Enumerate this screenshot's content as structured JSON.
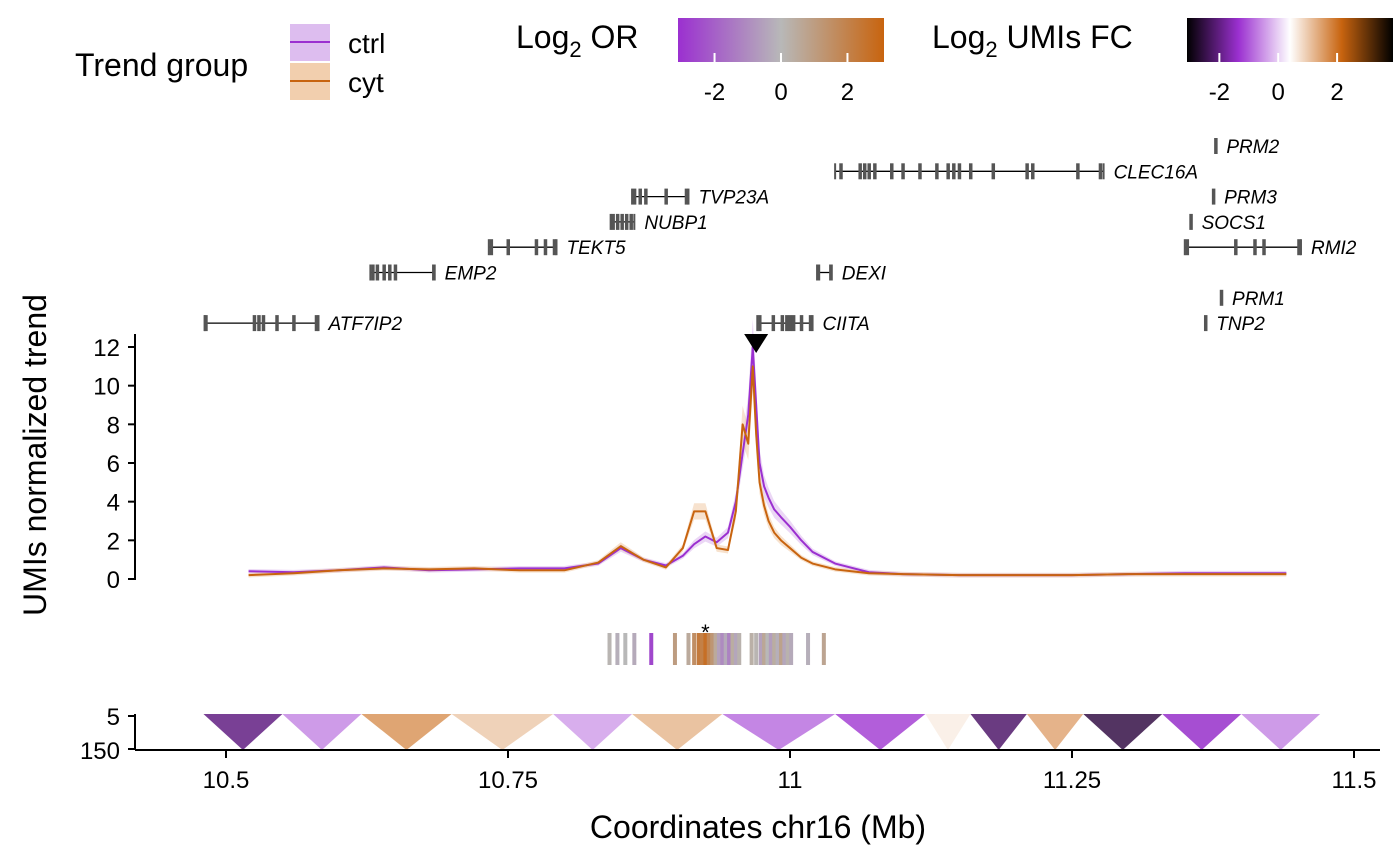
{
  "chart_data": {
    "type": "line",
    "xlabel": "Coordinates chr16 (Mb)",
    "ylabel": "UMIs normalized trend",
    "xlim": [
      10.43,
      11.53
    ],
    "ylim": [
      0,
      12.5
    ],
    "x_ticks": [
      10.5,
      10.75,
      11,
      11.25,
      11.5
    ],
    "x_tick_labels": [
      "10.5",
      "10.75",
      "11",
      "11.25",
      "11.5"
    ],
    "y_ticks": [
      0,
      2,
      4,
      6,
      8,
      10,
      12
    ],
    "y_tick_labels": [
      "0",
      "2",
      "4",
      "6",
      "8",
      "10",
      "12"
    ],
    "viewpoint": 10.97,
    "legend": {
      "title": "Trend group",
      "position": "top-left",
      "entries": [
        {
          "label": "ctrl",
          "line_color": "#9B30D0",
          "fill_color": "#DDBDEF"
        },
        {
          "label": "cyt",
          "line_color": "#C8640F",
          "fill_color": "#F2CFAE"
        }
      ]
    },
    "colorbars": [
      {
        "title_base": "Log",
        "title_sub": "2",
        "title_rest": " OR",
        "ticks": [
          -2,
          0,
          2
        ],
        "tick_labels": [
          "-2",
          "0",
          "2"
        ],
        "colors": [
          "#9B30D0",
          "#B8B8B8",
          "#C8640F"
        ]
      },
      {
        "title_base": "Log",
        "title_sub": "2",
        "title_rest": " UMIs FC",
        "ticks": [
          -2,
          0,
          2
        ],
        "tick_labels": [
          "-2",
          "0",
          "2"
        ],
        "colors": [
          "#000000",
          "#9B30D0",
          "#FFFFFF",
          "#C8640F",
          "#000000"
        ]
      }
    ],
    "series": [
      {
        "name": "ctrl",
        "color": "#9B30D0",
        "x": [
          10.52,
          10.56,
          10.6,
          10.64,
          10.68,
          10.72,
          10.76,
          10.8,
          10.83,
          10.85,
          10.87,
          10.89,
          10.905,
          10.915,
          10.925,
          10.935,
          10.945,
          10.952,
          10.958,
          10.963,
          10.967,
          10.97,
          10.973,
          10.977,
          10.981,
          10.986,
          10.992,
          11.0,
          11.01,
          11.02,
          11.04,
          11.07,
          11.1,
          11.15,
          11.2,
          11.25,
          11.3,
          11.35,
          11.4,
          11.44
        ],
        "y": [
          0.4,
          0.35,
          0.45,
          0.6,
          0.45,
          0.5,
          0.55,
          0.55,
          0.8,
          1.6,
          1.0,
          0.7,
          1.2,
          1.8,
          2.2,
          1.9,
          2.4,
          4.0,
          6.5,
          8.5,
          12.0,
          9.0,
          6.0,
          4.8,
          4.2,
          3.6,
          3.2,
          2.7,
          2.0,
          1.4,
          0.8,
          0.35,
          0.25,
          0.2,
          0.2,
          0.2,
          0.25,
          0.3,
          0.3,
          0.3
        ]
      },
      {
        "name": "cyt",
        "color": "#C8640F",
        "x": [
          10.52,
          10.56,
          10.6,
          10.64,
          10.68,
          10.72,
          10.76,
          10.8,
          10.83,
          10.85,
          10.87,
          10.89,
          10.905,
          10.915,
          10.925,
          10.935,
          10.945,
          10.952,
          10.958,
          10.963,
          10.967,
          10.97,
          10.973,
          10.977,
          10.981,
          10.986,
          10.992,
          11.0,
          11.01,
          11.02,
          11.04,
          11.07,
          11.1,
          11.15,
          11.2,
          11.25,
          11.3,
          11.35,
          11.4,
          11.44
        ],
        "y": [
          0.2,
          0.3,
          0.45,
          0.55,
          0.5,
          0.55,
          0.45,
          0.45,
          0.85,
          1.7,
          1.0,
          0.6,
          1.6,
          3.5,
          3.5,
          1.6,
          1.5,
          3.5,
          8.0,
          7.0,
          11.0,
          7.5,
          5.0,
          3.8,
          3.0,
          2.4,
          2.0,
          1.6,
          1.1,
          0.8,
          0.5,
          0.3,
          0.25,
          0.2,
          0.2,
          0.2,
          0.25,
          0.25,
          0.25,
          0.25
        ]
      }
    ],
    "genes": [
      {
        "name": "PRM2",
        "start": 11.376,
        "end": 11.378,
        "exons": [],
        "row": 1
      },
      {
        "name": "CLEC16A",
        "start": 11.04,
        "end": 11.278,
        "exons": [
          11.045,
          11.062,
          11.066,
          11.07,
          11.075,
          11.09,
          11.1,
          11.115,
          11.13,
          11.14,
          11.145,
          11.15,
          11.16,
          11.18,
          11.21,
          11.215,
          11.255,
          11.275
        ],
        "row": 2
      },
      {
        "name": "TVP23A",
        "start": 10.86,
        "end": 10.91,
        "exons": [
          10.862,
          10.867,
          10.872,
          10.89,
          10.908
        ],
        "row": 3
      },
      {
        "name": "PRM3",
        "start": 11.374,
        "end": 11.376,
        "exons": [],
        "row": 3
      },
      {
        "name": "NUBP1",
        "start": 10.841,
        "end": 10.862,
        "exons": [
          10.843,
          10.847,
          10.851,
          10.855,
          10.859
        ],
        "row": 4
      },
      {
        "name": "SOCS1",
        "start": 11.354,
        "end": 11.356,
        "exons": [],
        "row": 4
      },
      {
        "name": "TEKT5",
        "start": 10.733,
        "end": 10.793,
        "exons": [
          10.735,
          10.75,
          10.775,
          10.783,
          10.791
        ],
        "row": 5
      },
      {
        "name": "RMI2",
        "start": 11.35,
        "end": 11.453,
        "exons": [
          11.352,
          11.395,
          11.412,
          11.42,
          11.451
        ],
        "row": 5
      },
      {
        "name": "EMP2",
        "start": 10.628,
        "end": 10.685,
        "exons": [
          10.63,
          10.634,
          10.64,
          10.645,
          10.65,
          10.684
        ],
        "row": 6
      },
      {
        "name": "DEXI",
        "start": 11.024,
        "end": 11.037,
        "exons": [
          11.025,
          11.036
        ],
        "row": 6
      },
      {
        "name": "PRM1",
        "start": 11.381,
        "end": 11.383,
        "exons": [],
        "row": 7
      },
      {
        "name": "ATF7IP2",
        "start": 10.481,
        "end": 10.582,
        "exons": [
          10.482,
          10.525,
          10.529,
          10.533,
          10.545,
          10.56,
          10.58
        ],
        "row": 8
      },
      {
        "name": "CIITA",
        "start": 10.971,
        "end": 11.02,
        "exons": [
          10.973,
          10.985,
          10.993,
          10.997,
          11.0,
          11.003,
          11.01,
          11.018
        ],
        "row": 8
      },
      {
        "name": "TNP2",
        "start": 11.367,
        "end": 11.369,
        "exons": [],
        "row": 8
      }
    ],
    "or_track": {
      "star_x": 10.925,
      "star_label": "*",
      "bins": [
        {
          "x": 10.84,
          "v": 0.1
        },
        {
          "x": 10.847,
          "v": -0.2
        },
        {
          "x": 10.854,
          "v": 0.0
        },
        {
          "x": 10.862,
          "v": -0.3
        },
        {
          "x": 10.877,
          "v": -2.5
        },
        {
          "x": 10.898,
          "v": 1.0
        },
        {
          "x": 10.91,
          "v": 0.5
        },
        {
          "x": 10.915,
          "v": 1.5
        },
        {
          "x": 10.919,
          "v": 2.2
        },
        {
          "x": 10.922,
          "v": 2.0
        },
        {
          "x": 10.925,
          "v": 2.6
        },
        {
          "x": 10.928,
          "v": 1.8
        },
        {
          "x": 10.931,
          "v": 1.2
        },
        {
          "x": 10.934,
          "v": 0.5
        },
        {
          "x": 10.937,
          "v": -0.5
        },
        {
          "x": 10.94,
          "v": -1.0
        },
        {
          "x": 10.943,
          "v": -0.3
        },
        {
          "x": 10.946,
          "v": -1.2
        },
        {
          "x": 10.949,
          "v": 0.4
        },
        {
          "x": 10.952,
          "v": -0.4
        },
        {
          "x": 10.955,
          "v": 0.2
        },
        {
          "x": 10.966,
          "v": 0.3
        },
        {
          "x": 10.97,
          "v": 0.1
        },
        {
          "x": 10.974,
          "v": -0.5
        },
        {
          "x": 10.977,
          "v": 0.6
        },
        {
          "x": 10.98,
          "v": 0.0
        },
        {
          "x": 10.983,
          "v": -0.6
        },
        {
          "x": 10.986,
          "v": 0.4
        },
        {
          "x": 10.989,
          "v": -0.2
        },
        {
          "x": 10.992,
          "v": 0.8
        },
        {
          "x": 10.995,
          "v": -0.4
        },
        {
          "x": 10.998,
          "v": 0.2
        },
        {
          "x": 11.001,
          "v": -0.3
        },
        {
          "x": 11.016,
          "v": -0.2
        },
        {
          "x": 11.03,
          "v": 0.7
        }
      ]
    },
    "heatmap_track": {
      "ylim_labels": [
        "5",
        "150"
      ],
      "segments": [
        {
          "start": 10.48,
          "end": 10.55,
          "v": -2.0
        },
        {
          "start": 10.55,
          "end": 10.62,
          "v": -0.6
        },
        {
          "start": 10.62,
          "end": 10.7,
          "v": 1.6
        },
        {
          "start": 10.7,
          "end": 10.79,
          "v": 1.0
        },
        {
          "start": 10.79,
          "end": 10.86,
          "v": -0.4
        },
        {
          "start": 10.86,
          "end": 10.94,
          "v": 1.2
        },
        {
          "start": 10.94,
          "end": 11.04,
          "v": -0.8
        },
        {
          "start": 11.04,
          "end": 11.12,
          "v": -1.2
        },
        {
          "start": 11.12,
          "end": 11.16,
          "v": 0.6
        },
        {
          "start": 11.16,
          "end": 11.21,
          "v": -2.2
        },
        {
          "start": 11.21,
          "end": 11.26,
          "v": 1.4
        },
        {
          "start": 11.26,
          "end": 11.33,
          "v": -2.5
        },
        {
          "start": 11.33,
          "end": 11.4,
          "v": -1.4
        },
        {
          "start": 11.4,
          "end": 11.47,
          "v": -0.6
        }
      ]
    }
  }
}
